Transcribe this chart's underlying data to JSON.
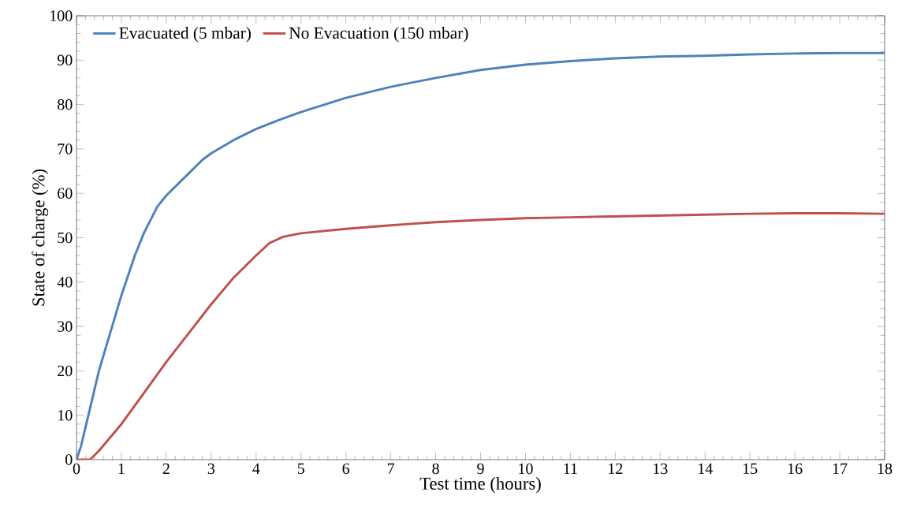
{
  "chart_data": {
    "type": "line",
    "xlabel": "Test time (hours)",
    "ylabel": "State of charge (%)",
    "xlim": [
      0,
      18
    ],
    "ylim": [
      0,
      100
    ],
    "xticks": [
      0,
      1,
      2,
      3,
      4,
      5,
      6,
      7,
      8,
      9,
      10,
      11,
      12,
      13,
      14,
      15,
      16,
      17,
      18
    ],
    "yticks": [
      0,
      10,
      20,
      30,
      40,
      50,
      60,
      70,
      80,
      90,
      100
    ],
    "grid": false,
    "legend": "top left",
    "marker": "none",
    "line_style": "solid",
    "series": [
      {
        "name": "Evacuated (5 mbar)",
        "color": "#4f81bd",
        "x": [
          0,
          0.1,
          0.5,
          1,
          1.3,
          1.5,
          1.8,
          2,
          2.5,
          2.8,
          3,
          3.5,
          4,
          4.5,
          5,
          6,
          7,
          8,
          9,
          10,
          11,
          12,
          13,
          14,
          15,
          16,
          17,
          18
        ],
        "values": [
          0,
          3,
          20,
          37,
          46,
          51,
          57,
          59.5,
          64.5,
          67.5,
          69,
          72,
          74.5,
          76.5,
          78.3,
          81.5,
          84,
          86,
          87.8,
          89,
          89.8,
          90.4,
          90.8,
          91,
          91.3,
          91.5,
          91.6,
          91.6
        ]
      },
      {
        "name": "No Evacuation (150 mbar)",
        "color": "#c0504d",
        "x": [
          0,
          0.3,
          0.5,
          1,
          1.5,
          2,
          2.5,
          3,
          3.5,
          4,
          4.3,
          4.6,
          5,
          6,
          7,
          8,
          9,
          10,
          11,
          12,
          13,
          14,
          15,
          16,
          17,
          18
        ],
        "values": [
          0,
          0,
          2,
          8,
          15,
          22,
          28.5,
          35,
          41,
          46,
          48.8,
          50.2,
          51,
          52,
          52.8,
          53.5,
          54,
          54.4,
          54.6,
          54.8,
          55,
          55.2,
          55.4,
          55.5,
          55.5,
          55.4
        ]
      }
    ]
  }
}
